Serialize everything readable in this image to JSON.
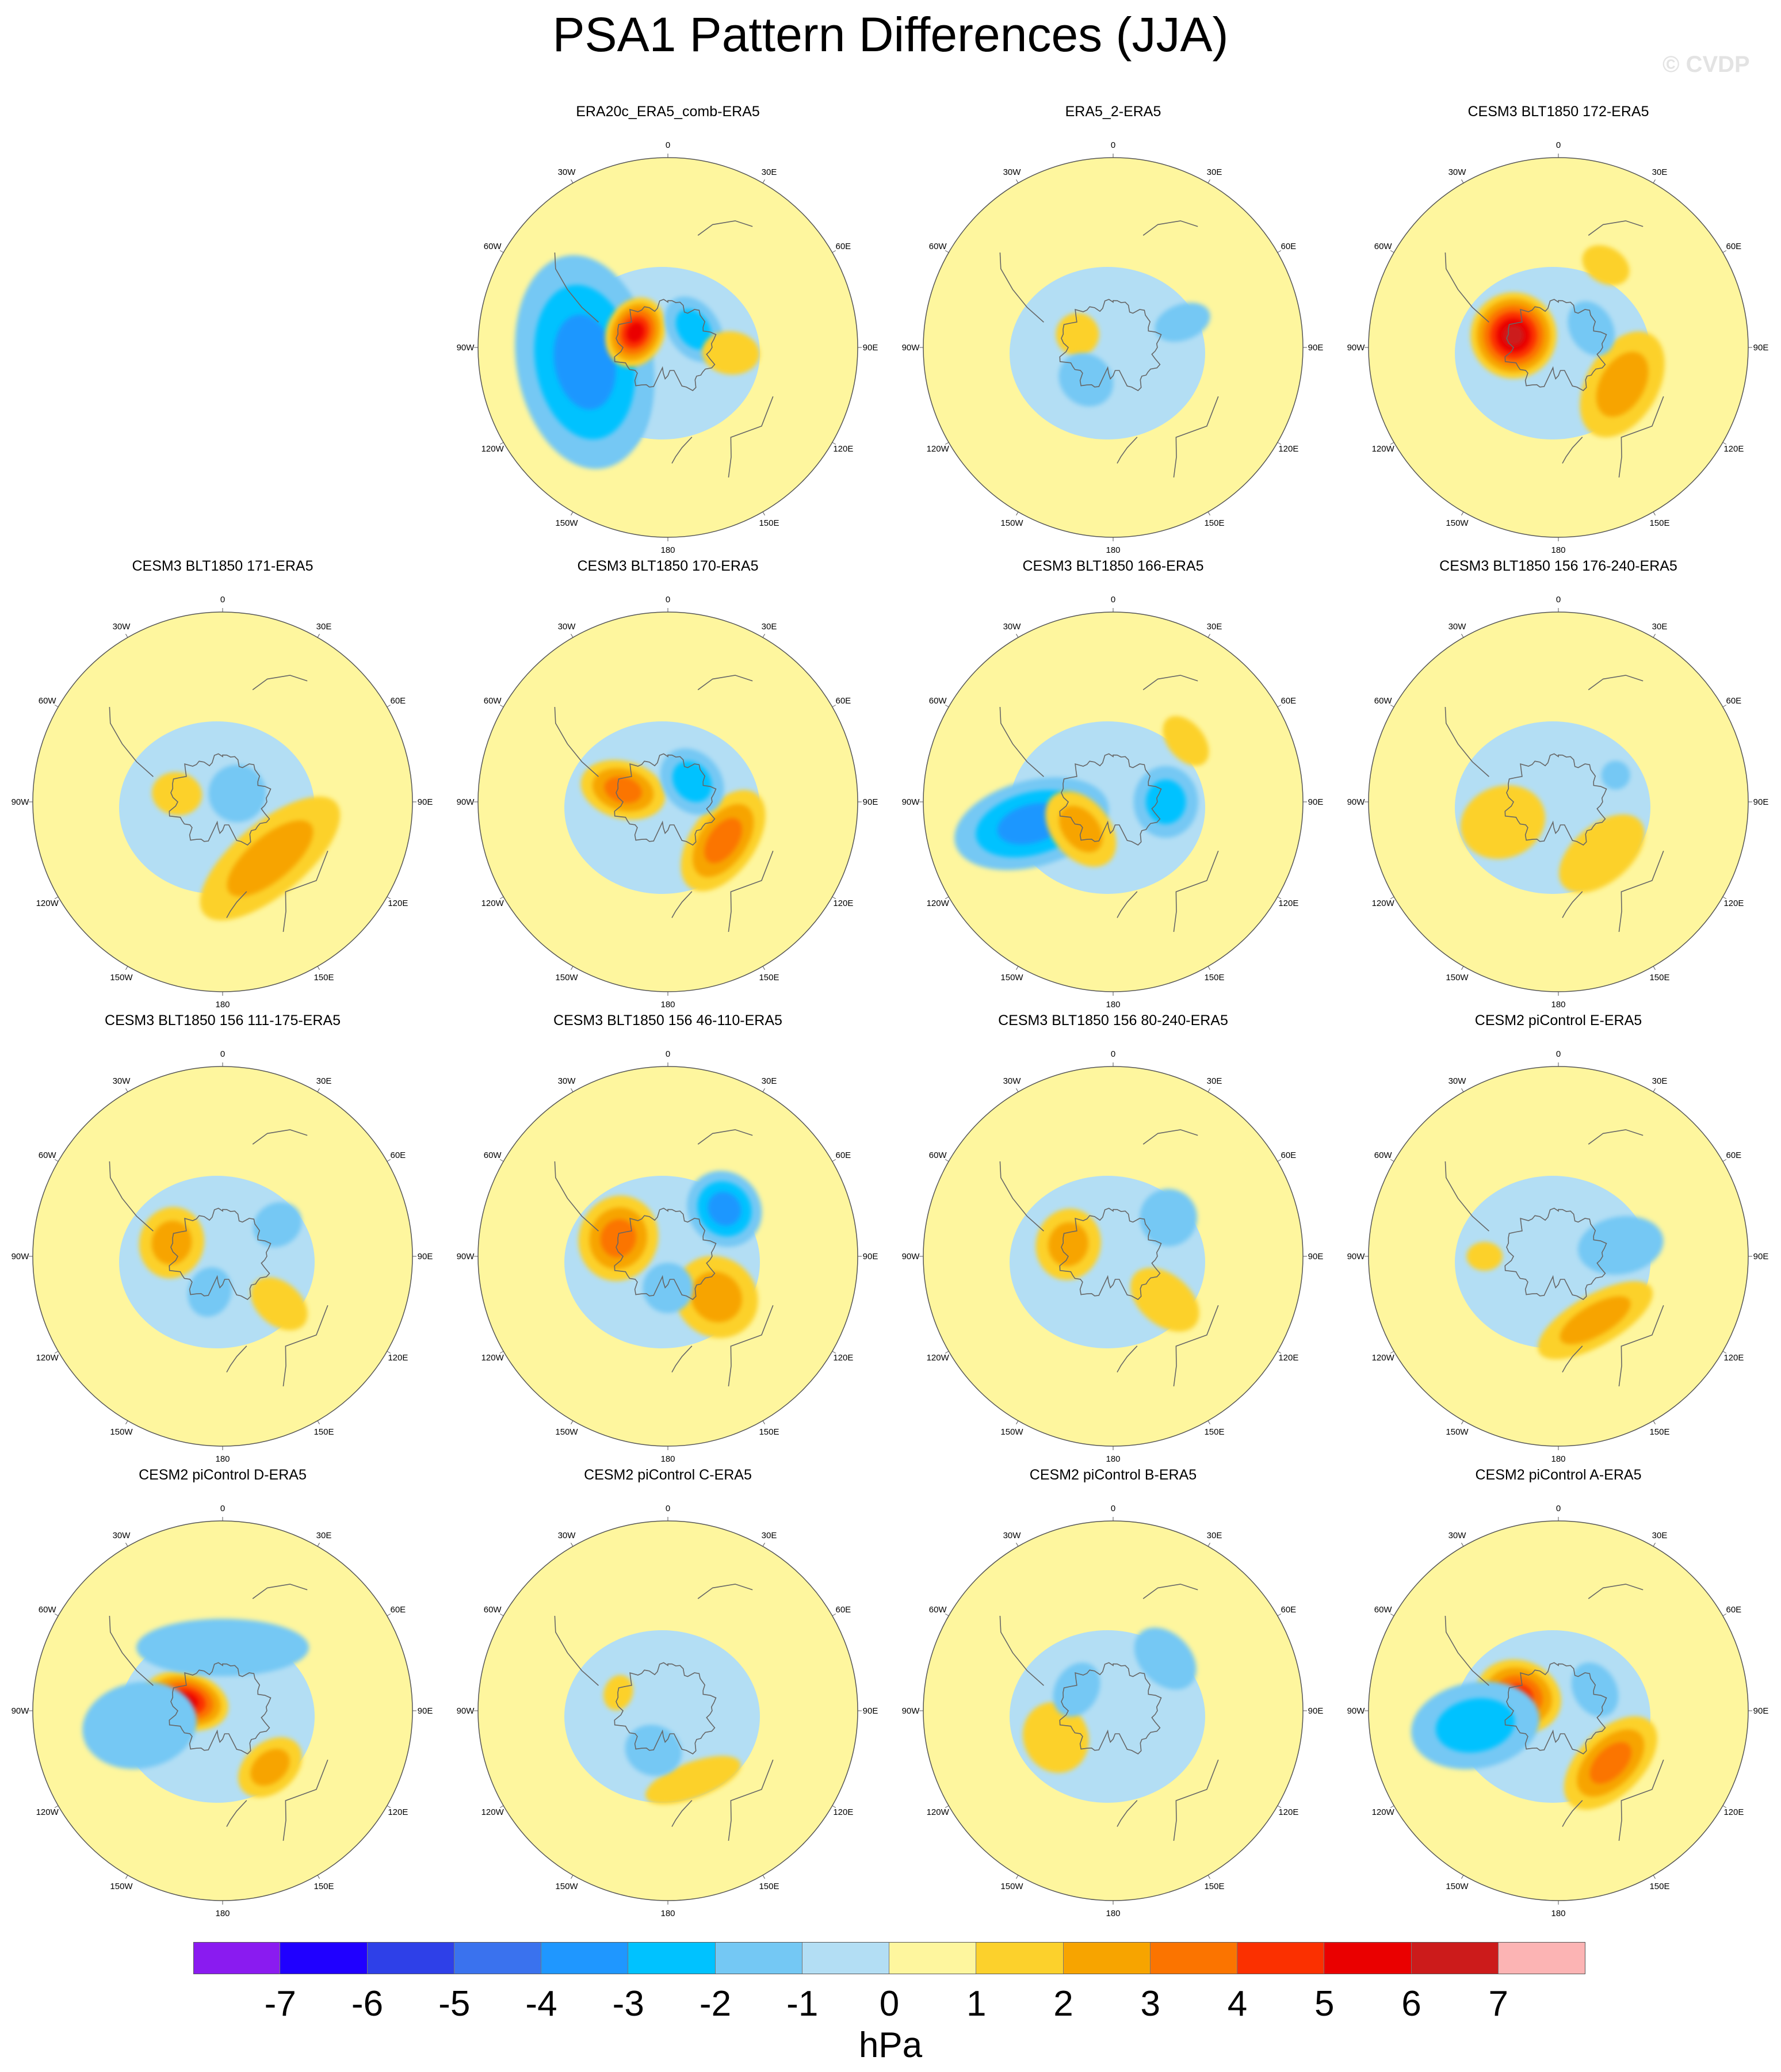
{
  "title": "PSA1 Pattern Differences (JJA)",
  "watermark": "© CVDP",
  "units": "hPa",
  "longitude_labels": [
    "0",
    "30E",
    "60E",
    "90E",
    "120E",
    "150E",
    "180",
    "150W",
    "120W",
    "90W",
    "60W",
    "30W"
  ],
  "colorbar": {
    "colors": [
      "#8a1bf0",
      "#2000ff",
      "#2e40e8",
      "#3a72ee",
      "#1f97ff",
      "#00c2ff",
      "#74c8f4",
      "#b3def4",
      "#fef69e",
      "#fcd12c",
      "#f7a400",
      "#fb7400",
      "#fb3000",
      "#ea0000",
      "#cc1b1b",
      "#fcb4b4"
    ],
    "ticks": [
      "-7",
      "-6",
      "-5",
      "-4",
      "-3",
      "-2",
      "-1",
      "0",
      "1",
      "2",
      "3",
      "4",
      "5",
      "6",
      "7"
    ]
  },
  "panels": [
    {
      "title": "ERA20c_ERA5_comb-ERA5",
      "anomalies": [
        {
          "lon": 255,
          "lat": -58,
          "value": -5,
          "rx": 120,
          "ry": 60
        },
        {
          "lon": 260,
          "lat": -50,
          "value": -3,
          "rx": 150,
          "ry": 95
        },
        {
          "lon": 295,
          "lat": -73,
          "value": 5,
          "rx": 50,
          "ry": 40
        },
        {
          "lon": 55,
          "lat": -75,
          "value": -2,
          "rx": 50,
          "ry": 35
        },
        {
          "lon": 95,
          "lat": -60,
          "value": 1,
          "rx": 30,
          "ry": 40
        }
      ]
    },
    {
      "title": "ERA5_2-ERA5",
      "anomalies": [
        {
          "lon": 290,
          "lat": -72,
          "value": 1,
          "rx": 30,
          "ry": 30
        },
        {
          "lon": 220,
          "lat": -70,
          "value": -1,
          "rx": 40,
          "ry": 35
        },
        {
          "lon": 70,
          "lat": -55,
          "value": -1,
          "rx": 25,
          "ry": 40
        }
      ]
    },
    {
      "title": "CESM3 BLT1850 172-ERA5",
      "anomalies": [
        {
          "lon": 285,
          "lat": -68,
          "value": 6,
          "rx": 60,
          "ry": 60
        },
        {
          "lon": 120,
          "lat": -55,
          "value": 2,
          "rx": 80,
          "ry": 50
        },
        {
          "lon": 30,
          "lat": -45,
          "value": 1,
          "rx": 35,
          "ry": 25
        },
        {
          "lon": 60,
          "lat": -72,
          "value": -1,
          "rx": 40,
          "ry": 30
        }
      ]
    },
    {
      "title": "CESM3 BLT1850 171-ERA5",
      "anomalies": [
        {
          "lon": 140,
          "lat": -55,
          "value": 2,
          "rx": 120,
          "ry": 50
        },
        {
          "lon": 280,
          "lat": -68,
          "value": 1,
          "rx": 30,
          "ry": 35
        },
        {
          "lon": 60,
          "lat": -82,
          "value": -1,
          "rx": 40,
          "ry": 40
        }
      ]
    },
    {
      "title": "CESM3 BLT1850 170-ERA5",
      "anomalies": [
        {
          "lon": 285,
          "lat": -68,
          "value": 3,
          "rx": 40,
          "ry": 60
        },
        {
          "lon": 125,
          "lat": -58,
          "value": 3,
          "rx": 80,
          "ry": 45
        },
        {
          "lon": 50,
          "lat": -75,
          "value": -2,
          "rx": 50,
          "ry": 40
        }
      ]
    },
    {
      "title": "CESM3 BLT1850 166-ERA5",
      "anomalies": [
        {
          "lon": 255,
          "lat": -50,
          "value": -3,
          "rx": 60,
          "ry": 110
        },
        {
          "lon": 230,
          "lat": -70,
          "value": 2,
          "rx": 60,
          "ry": 40
        },
        {
          "lon": 90,
          "lat": -65,
          "value": -2,
          "rx": 50,
          "ry": 45
        },
        {
          "lon": 50,
          "lat": -45,
          "value": 1,
          "rx": 40,
          "ry": 25
        }
      ]
    },
    {
      "title": "CESM3 BLT1850 156 176-240-ERA5",
      "anomalies": [
        {
          "lon": 250,
          "lat": -62,
          "value": 1,
          "rx": 50,
          "ry": 60
        },
        {
          "lon": 140,
          "lat": -58,
          "value": 1,
          "rx": 70,
          "ry": 40
        },
        {
          "lon": 65,
          "lat": -60,
          "value": -1,
          "rx": 20,
          "ry": 20
        }
      ]
    },
    {
      "title": "CESM3 BLT1850 156 111-175-ERA5",
      "anomalies": [
        {
          "lon": 285,
          "lat": -65,
          "value": 2,
          "rx": 50,
          "ry": 45
        },
        {
          "lon": 130,
          "lat": -55,
          "value": 1,
          "rx": 30,
          "ry": 45
        },
        {
          "lon": 200,
          "lat": -72,
          "value": -1,
          "rx": 30,
          "ry": 35
        },
        {
          "lon": 60,
          "lat": -60,
          "value": -1,
          "rx": 30,
          "ry": 35
        }
      ]
    },
    {
      "title": "CESM3 BLT1850 156 46-110-ERA5",
      "anomalies": [
        {
          "lon": 290,
          "lat": -65,
          "value": 3,
          "rx": 60,
          "ry": 55
        },
        {
          "lon": 130,
          "lat": -60,
          "value": 2,
          "rx": 55,
          "ry": 60
        },
        {
          "lon": 50,
          "lat": -55,
          "value": -3,
          "rx": 55,
          "ry": 50
        },
        {
          "lon": 180,
          "lat": -75,
          "value": -1,
          "rx": 35,
          "ry": 35
        }
      ]
    },
    {
      "title": "CESM3 BLT1850 156 80-240-ERA5",
      "anomalies": [
        {
          "lon": 285,
          "lat": -68,
          "value": 2,
          "rx": 50,
          "ry": 45
        },
        {
          "lon": 130,
          "lat": -58,
          "value": 1,
          "rx": 35,
          "ry": 55
        },
        {
          "lon": 55,
          "lat": -58,
          "value": -1,
          "rx": 40,
          "ry": 40
        }
      ]
    },
    {
      "title": "CESM2 piControl E-ERA5",
      "anomalies": [
        {
          "lon": 150,
          "lat": -55,
          "value": 2,
          "rx": 90,
          "ry": 35
        },
        {
          "lon": 80,
          "lat": -60,
          "value": -1,
          "rx": 40,
          "ry": 60
        },
        {
          "lon": 270,
          "lat": -55,
          "value": 1,
          "rx": 20,
          "ry": 25
        }
      ]
    },
    {
      "title": "CESM2 piControl D-ERA5",
      "anomalies": [
        {
          "lon": 285,
          "lat": -72,
          "value": 5,
          "rx": 40,
          "ry": 60
        },
        {
          "lon": 260,
          "lat": -50,
          "value": -1,
          "rx": 60,
          "ry": 80
        },
        {
          "lon": 140,
          "lat": -55,
          "value": 2,
          "rx": 50,
          "ry": 35
        },
        {
          "lon": 0,
          "lat": -60,
          "value": -1,
          "rx": 120,
          "ry": 40
        }
      ]
    },
    {
      "title": "CESM2 piControl C-ERA5",
      "anomalies": [
        {
          "lon": 160,
          "lat": -55,
          "value": 1,
          "rx": 70,
          "ry": 25
        },
        {
          "lon": 200,
          "lat": -70,
          "value": -1,
          "rx": 40,
          "ry": 35
        },
        {
          "lon": 290,
          "lat": -65,
          "value": 1,
          "rx": 25,
          "ry": 20
        }
      ]
    },
    {
      "title": "CESM2 piControl B-ERA5",
      "anomalies": [
        {
          "lon": 245,
          "lat": -60,
          "value": 1,
          "rx": 50,
          "ry": 45
        },
        {
          "lon": 45,
          "lat": -55,
          "value": -1,
          "rx": 50,
          "ry": 35
        },
        {
          "lon": 300,
          "lat": -70,
          "value": -1,
          "rx": 40,
          "ry": 30
        }
      ]
    },
    {
      "title": "CESM2 piControl A-ERA5",
      "anomalies": [
        {
          "lon": 290,
          "lat": -70,
          "value": 4,
          "rx": 50,
          "ry": 60
        },
        {
          "lon": 260,
          "lat": -50,
          "value": -2,
          "rx": 60,
          "ry": 90
        },
        {
          "lon": 135,
          "lat": -55,
          "value": 3,
          "rx": 80,
          "ry": 45
        },
        {
          "lon": 60,
          "lat": -70,
          "value": -1,
          "rx": 40,
          "ry": 30
        }
      ]
    }
  ]
}
